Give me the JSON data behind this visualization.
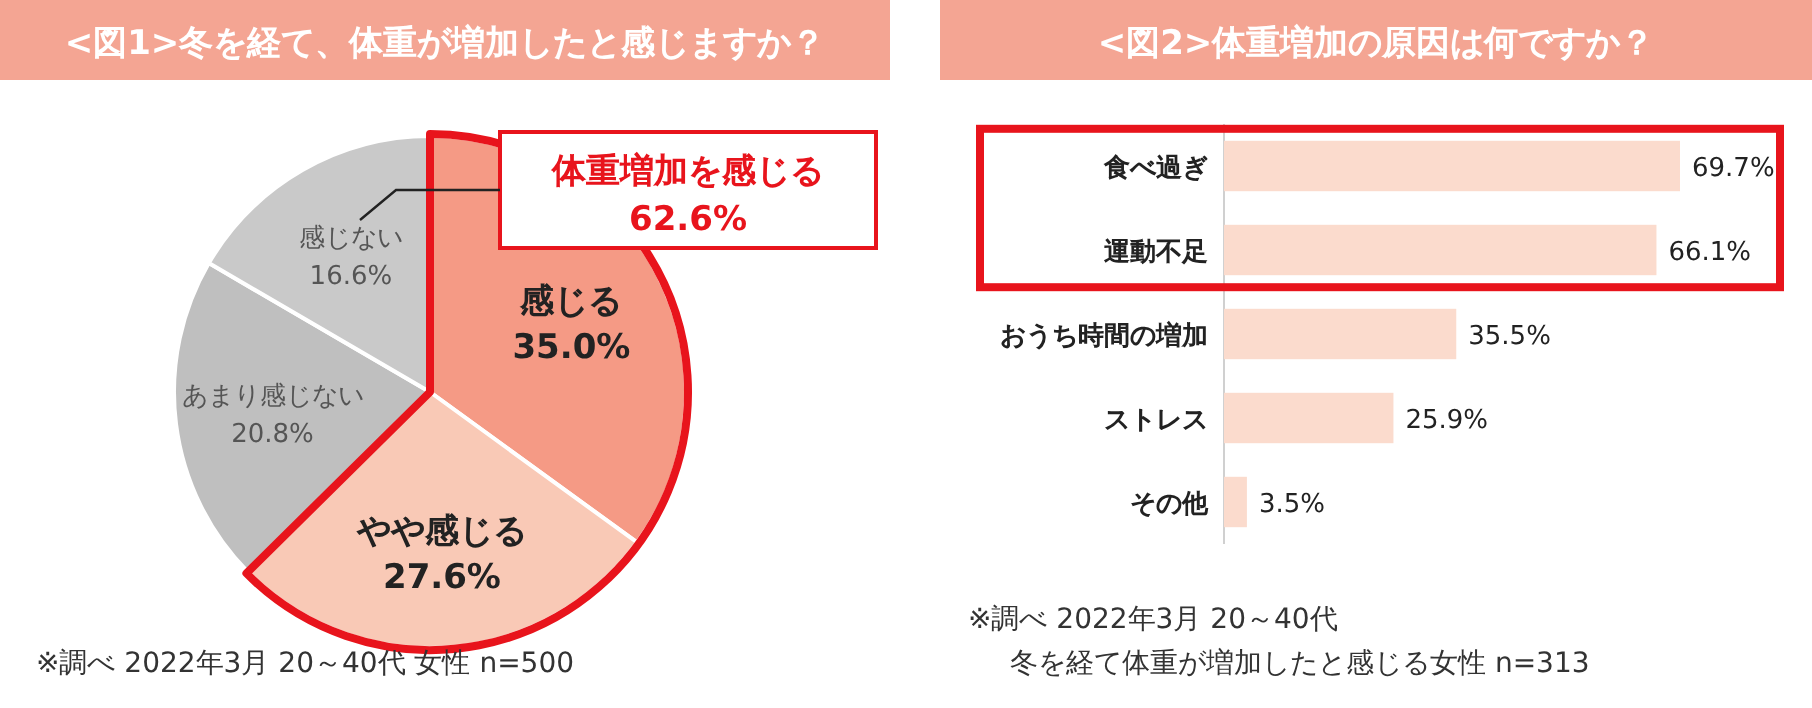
{
  "chart_data": [
    {
      "type": "pie",
      "title": "<図1>冬を経て、体重が増加したと感じますか？",
      "categories": [
        "感じる",
        "やや感じる",
        "あまり感じない",
        "感じない"
      ],
      "values": [
        35.0,
        27.6,
        20.8,
        16.6
      ],
      "colors": [
        "#f59a85",
        "#f9c9b6",
        "#bfbfbf",
        "#c9c9c9"
      ],
      "value_labels": [
        "35.0%",
        "27.6%",
        "20.8%",
        "16.6%"
      ],
      "annotations": [
        "体重増加を感じる 62.6%",
        "※調べ 2022年3月 20～40代 女性 n=500"
      ]
    },
    {
      "type": "bar",
      "orientation": "horizontal",
      "title": "<図2>体重増加の原因は何ですか？",
      "categories": [
        "食べ過ぎ",
        "運動不足",
        "おうち時間の増加",
        "ストレス",
        "その他"
      ],
      "values": [
        69.7,
        66.1,
        35.5,
        25.9,
        3.5
      ],
      "color": "#fbdbcd",
      "value_labels": [
        "69.7%",
        "66.1%",
        "35.5%",
        "25.9%",
        "3.5%"
      ],
      "annotations": [
        "※調べ 2022年3月 20～40代",
        "冬を経て体重が増加したと感じる女性 n=313"
      ]
    }
  ]
}
